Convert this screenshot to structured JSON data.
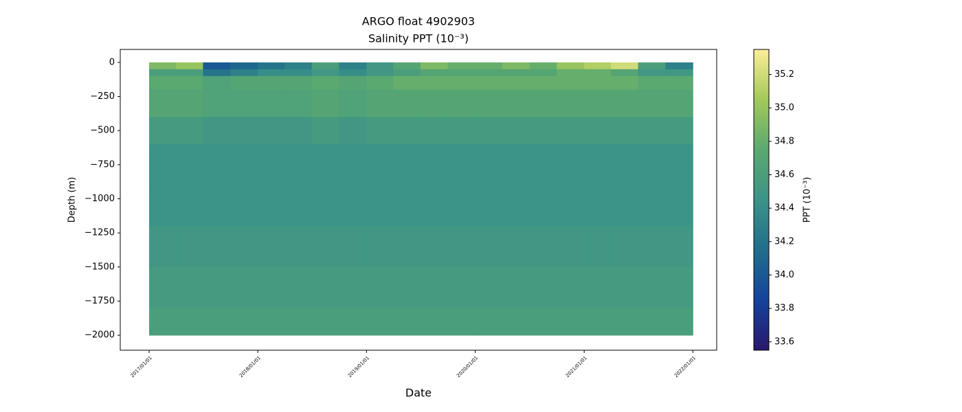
{
  "chart_data": {
    "type": "heatmap",
    "title": "ARGO float 4902903",
    "subtitle": "Salinity PPT (10⁻³)",
    "x_label": "Date",
    "y_label": "Depth (m)",
    "colorbar_label": "PPT (10⁻³)",
    "x": [
      "2017/01/01",
      "2017/04/01",
      "2017/07/01",
      "2017/10/01",
      "2018/01/01",
      "2018/04/01",
      "2018/07/01",
      "2018/10/01",
      "2019/01/01",
      "2019/04/01",
      "2019/07/01",
      "2019/10/01",
      "2020/01/01",
      "2020/04/01",
      "2020/07/01",
      "2020/10/01",
      "2021/01/01",
      "2021/04/01",
      "2021/07/01",
      "2021/10/01",
      "2022/01/01"
    ],
    "y": [
      0,
      -50,
      -100,
      -200,
      -400,
      -600,
      -900,
      -1200,
      -1500,
      -1800,
      -2000
    ],
    "z": [
      [
        34.9,
        35.0,
        34.0,
        34.1,
        34.2,
        34.3,
        34.6,
        34.3,
        34.5,
        34.7,
        34.9,
        34.8,
        34.8,
        34.9,
        34.8,
        35.0,
        35.1,
        35.2,
        34.6,
        34.3
      ],
      [
        34.6,
        34.6,
        34.2,
        34.3,
        34.4,
        34.4,
        34.5,
        34.4,
        34.5,
        34.6,
        34.7,
        34.7,
        34.7,
        34.7,
        34.7,
        34.8,
        34.8,
        34.7,
        34.5,
        34.5
      ],
      [
        34.75,
        34.75,
        34.65,
        34.7,
        34.7,
        34.7,
        34.75,
        34.7,
        34.75,
        34.8,
        34.8,
        34.8,
        34.8,
        34.8,
        34.8,
        34.8,
        34.8,
        34.8,
        34.75,
        34.75
      ],
      [
        34.7,
        34.7,
        34.65,
        34.65,
        34.65,
        34.65,
        34.7,
        34.65,
        34.7,
        34.7,
        34.7,
        34.7,
        34.7,
        34.7,
        34.7,
        34.7,
        34.7,
        34.7,
        34.7,
        34.7
      ],
      [
        34.55,
        34.55,
        34.5,
        34.5,
        34.5,
        34.5,
        34.55,
        34.5,
        34.55,
        34.55,
        34.55,
        34.55,
        34.55,
        34.55,
        34.55,
        34.55,
        34.55,
        34.55,
        34.55,
        34.55
      ],
      [
        34.45,
        34.45,
        34.45,
        34.45,
        34.45,
        34.45,
        34.45,
        34.45,
        34.45,
        34.45,
        34.45,
        34.45,
        34.45,
        34.45,
        34.45,
        34.45,
        34.45,
        34.45,
        34.45,
        34.45
      ],
      [
        34.45,
        34.45,
        34.45,
        34.45,
        34.45,
        34.45,
        34.45,
        34.45,
        34.45,
        34.45,
        34.45,
        34.45,
        34.45,
        34.45,
        34.45,
        34.45,
        34.45,
        34.45,
        34.45,
        34.45
      ],
      [
        34.5,
        34.5,
        34.5,
        34.5,
        34.5,
        34.5,
        34.5,
        34.5,
        34.5,
        34.5,
        34.5,
        34.5,
        34.5,
        34.5,
        34.5,
        34.5,
        34.5,
        34.5,
        34.5,
        34.5
      ],
      [
        34.55,
        34.55,
        34.55,
        34.55,
        34.55,
        34.55,
        34.55,
        34.55,
        34.55,
        34.55,
        34.55,
        34.55,
        34.55,
        34.55,
        34.55,
        34.55,
        34.55,
        34.55,
        34.55,
        34.55
      ],
      [
        34.6,
        34.6,
        34.6,
        34.6,
        34.6,
        34.6,
        34.6,
        34.6,
        34.6,
        34.6,
        34.6,
        34.6,
        34.6,
        34.6,
        34.6,
        34.6,
        34.6,
        34.6,
        34.6,
        34.6
      ]
    ],
    "xlim": [
      "2016/09/26",
      "2022/03/22"
    ],
    "xticks": [
      "2017/01/01",
      "2018/01/01",
      "2019/01/01",
      "2020/01/01",
      "2021/01/01",
      "2022/01/01"
    ],
    "ylim": [
      -2110,
      95
    ],
    "yticks": [
      0,
      {
        "value": -250,
        "label": "−250"
      },
      {
        "value": -500,
        "label": "−500"
      },
      {
        "value": -750,
        "label": "−750"
      },
      {
        "value": -1000,
        "label": "−1000"
      },
      {
        "value": -1250,
        "label": "−1250"
      },
      {
        "value": -1500,
        "label": "−1500"
      },
      {
        "value": -1750,
        "label": "−1750"
      },
      {
        "value": -2000,
        "label": "−2000"
      }
    ],
    "zlim": [
      33.55,
      35.35
    ],
    "zticks": [
      33.6,
      33.8,
      {
        "value": 34,
        "label": "34.0"
      },
      34.2,
      34.4,
      34.6,
      34.8,
      {
        "value": 35,
        "label": "35.0"
      },
      35.2
    ],
    "colormap": [
      "#2a186c",
      "#14439c",
      "#206e8b",
      "#3c9387",
      "#5aa970",
      "#a2c95a",
      "#fdee99"
    ]
  }
}
